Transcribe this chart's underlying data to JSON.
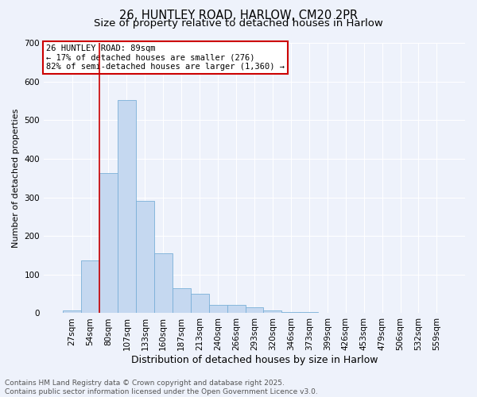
{
  "title1": "26, HUNTLEY ROAD, HARLOW, CM20 2PR",
  "title2": "Size of property relative to detached houses in Harlow",
  "xlabel": "Distribution of detached houses by size in Harlow",
  "ylabel": "Number of detached properties",
  "bins": [
    "27sqm",
    "54sqm",
    "80sqm",
    "107sqm",
    "133sqm",
    "160sqm",
    "187sqm",
    "213sqm",
    "240sqm",
    "266sqm",
    "293sqm",
    "320sqm",
    "346sqm",
    "373sqm",
    "399sqm",
    "426sqm",
    "453sqm",
    "479sqm",
    "506sqm",
    "532sqm",
    "559sqm"
  ],
  "values": [
    8,
    137,
    363,
    551,
    290,
    155,
    65,
    50,
    22,
    22,
    15,
    8,
    3,
    3,
    0,
    0,
    0,
    0,
    0,
    0,
    0
  ],
  "bar_color": "#c5d8f0",
  "bar_edge_color": "#7ab0d8",
  "red_line_bin_index": 2,
  "annotation_line1": "26 HUNTLEY ROAD: 89sqm",
  "annotation_line2": "← 17% of detached houses are smaller (276)",
  "annotation_line3": "82% of semi-detached houses are larger (1,360) →",
  "annotation_box_facecolor": "#ffffff",
  "annotation_box_edgecolor": "#cc0000",
  "ylim": [
    0,
    700
  ],
  "yticks": [
    0,
    100,
    200,
    300,
    400,
    500,
    600,
    700
  ],
  "background_color": "#eef2fb",
  "plot_bg_color": "#eef2fb",
  "grid_color": "#ffffff",
  "footer1": "Contains HM Land Registry data © Crown copyright and database right 2025.",
  "footer2": "Contains public sector information licensed under the Open Government Licence v3.0.",
  "title_fontsize": 10.5,
  "subtitle_fontsize": 9.5,
  "xlabel_fontsize": 9,
  "ylabel_fontsize": 8,
  "tick_fontsize": 7.5,
  "annotation_fontsize": 7.5,
  "footer_fontsize": 6.5
}
